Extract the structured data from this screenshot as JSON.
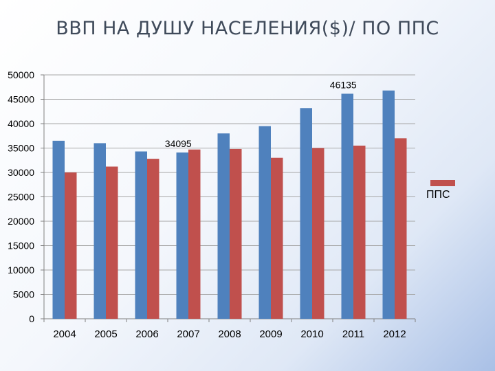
{
  "title": "ВВП НА ДУШУ НАСЕЛЕНИЯ($)/ ПО ППС",
  "colors": {
    "gdp": "#4f81bd",
    "ppp": "#c0504d",
    "grid": "#a6a6a6",
    "axis": "#808080"
  },
  "legend": {
    "label": "ППС"
  },
  "chart_data": {
    "type": "bar",
    "title": "ВВП НА ДУШУ НАСЕЛЕНИЯ($)/ ПО ППС",
    "categories": [
      "2004",
      "2005",
      "2006",
      "2007",
      "2008",
      "2009",
      "2010",
      "2011",
      "2012"
    ],
    "series": [
      {
        "values": [
          36500,
          36000,
          34300,
          34095,
          38000,
          39500,
          43200,
          46135,
          46800
        ]
      },
      {
        "name": "ППС",
        "values": [
          30000,
          31200,
          32800,
          34700,
          34800,
          33000,
          35000,
          35500,
          37000
        ]
      }
    ],
    "ylim": [
      0,
      50000
    ],
    "yticks": [
      "0",
      "5000",
      "10000",
      "15000",
      "20000",
      "25000",
      "30000",
      "35000",
      "40000",
      "45000",
      "50000"
    ],
    "data_labels": [
      {
        "series": 0,
        "category": "2007",
        "text": "34095"
      },
      {
        "series": 0,
        "category": "2011",
        "text": "46135"
      }
    ],
    "grid": true,
    "legend_position": "right"
  }
}
